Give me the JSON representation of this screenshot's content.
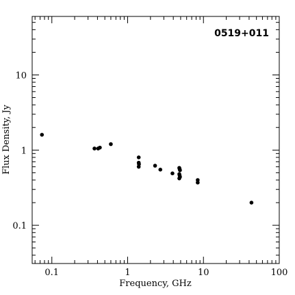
{
  "chart_data": {
    "type": "scatter",
    "title": "0519+011",
    "xlabel": "Frequency, GHz",
    "ylabel": "Flux Density, Jy",
    "xscale": "log",
    "yscale": "log",
    "xlim": [
      0.055,
      100
    ],
    "ylim": [
      0.031,
      60
    ],
    "x_ticks": [
      0.1,
      1,
      10,
      100
    ],
    "x_tick_labels": [
      "0.1",
      "1",
      "10",
      "100"
    ],
    "y_ticks": [
      0.1,
      1,
      10
    ],
    "y_tick_labels": [
      "0.1",
      "1",
      "10"
    ],
    "grid": false,
    "legend": "none",
    "marker_color": "#000000",
    "points": [
      {
        "x": 0.074,
        "y": 1.6
      },
      {
        "x": 0.365,
        "y": 1.05
      },
      {
        "x": 0.408,
        "y": 1.05
      },
      {
        "x": 0.43,
        "y": 1.08
      },
      {
        "x": 0.6,
        "y": 1.2
      },
      {
        "x": 1.4,
        "y": 0.8
      },
      {
        "x": 1.4,
        "y": 0.68
      },
      {
        "x": 1.41,
        "y": 0.65
      },
      {
        "x": 1.4,
        "y": 0.6
      },
      {
        "x": 2.3,
        "y": 0.62
      },
      {
        "x": 2.7,
        "y": 0.55
      },
      {
        "x": 3.9,
        "y": 0.49
      },
      {
        "x": 4.8,
        "y": 0.58
      },
      {
        "x": 4.85,
        "y": 0.56
      },
      {
        "x": 4.9,
        "y": 0.54
      },
      {
        "x": 4.8,
        "y": 0.48
      },
      {
        "x": 4.85,
        "y": 0.46
      },
      {
        "x": 4.9,
        "y": 0.44
      },
      {
        "x": 4.8,
        "y": 0.42
      },
      {
        "x": 8.4,
        "y": 0.4
      },
      {
        "x": 8.4,
        "y": 0.37
      },
      {
        "x": 43,
        "y": 0.2
      }
    ]
  }
}
